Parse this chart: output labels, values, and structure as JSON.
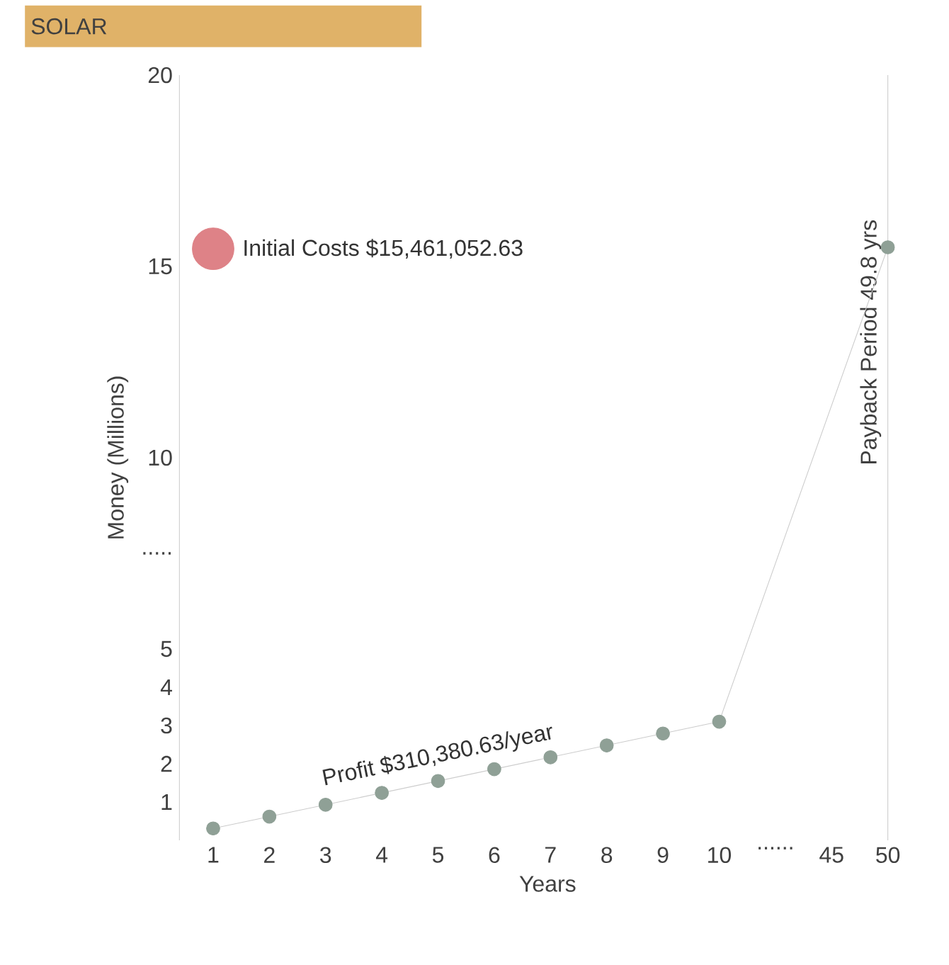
{
  "chart_data": {
    "type": "line",
    "title": "SOLAR",
    "xlabel": "Years",
    "ylabel": "Money (Millions)",
    "categories": [
      "1",
      "2",
      "3",
      "4",
      "5",
      "6",
      "7",
      "8",
      "9",
      "10",
      "......",
      "45",
      "50"
    ],
    "series": [
      {
        "color": "#8fa096",
        "values": [
          0.31,
          0.62,
          0.93,
          1.24,
          1.55,
          1.86,
          2.17,
          2.48,
          2.79,
          3.1,
          null,
          null,
          15.5
        ]
      },
      {
        "type": "scatter",
        "name": "Initial Costs $15,461,052.63",
        "color": "#de8287",
        "x": [
          "1"
        ],
        "values": [
          15.46
        ]
      }
    ],
    "marker": "circle",
    "ylim": [
      0,
      20
    ],
    "yticks": [
      1,
      2,
      3,
      4,
      5,
      {
        "value": 7.5,
        "label": "....."
      },
      10,
      15,
      20
    ],
    "ref_lines": [
      {
        "axis": "x",
        "value": "50",
        "label": "Payback Period 49.8 yrs",
        "color": "#cccccc"
      }
    ],
    "annotations": [
      "Profit $310,380.63/year"
    ]
  }
}
